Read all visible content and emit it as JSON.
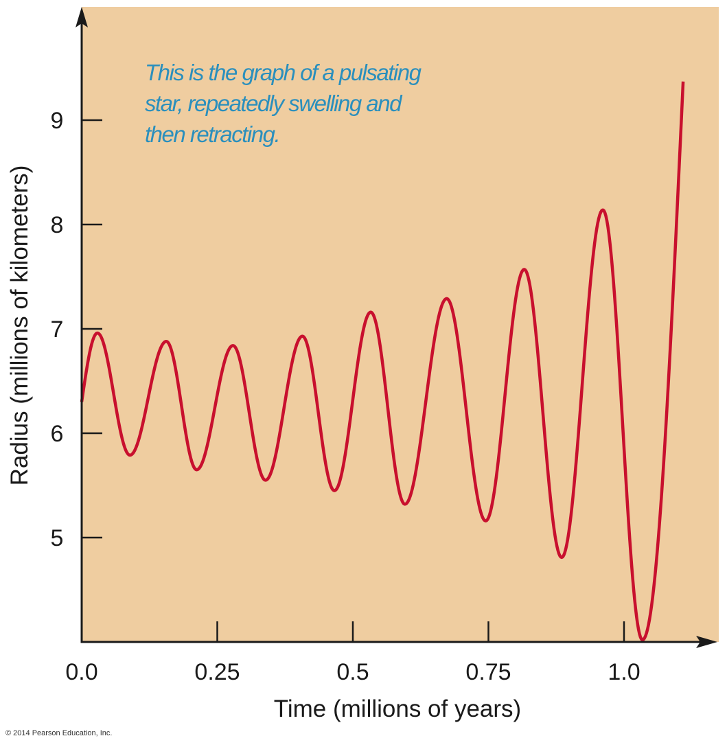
{
  "chart_data": {
    "type": "line",
    "title": "",
    "xlabel": "Time (millions of years)",
    "ylabel": "Radius (millions of kilometers)",
    "xlim": [
      0.0,
      1.17
    ],
    "ylim": [
      4.0,
      10.1
    ],
    "x_ticks": [
      0.0,
      0.25,
      0.5,
      0.75,
      1.0
    ],
    "x_tick_labels": [
      "0.0",
      "0.25",
      "0.5",
      "0.75",
      "1.0"
    ],
    "y_ticks": [
      5,
      6,
      7,
      8,
      9
    ],
    "y_tick_labels": [
      "5",
      "6",
      "7",
      "8",
      "9"
    ],
    "grid": false,
    "legend": null,
    "annotation": {
      "lines": [
        "This is the graph of a pulsating",
        "star, repeatedly swelling and",
        "then retracting."
      ],
      "position": "top-left"
    },
    "series": [
      {
        "name": "Radius",
        "color": "#c8102e",
        "description": "Key points (start, alternating peaks and troughs, end) of a smooth oscillating curve",
        "points": [
          {
            "x": 0.0,
            "y": 6.3
          },
          {
            "x": 0.029,
            "y": 6.96
          },
          {
            "x": 0.089,
            "y": 5.79
          },
          {
            "x": 0.156,
            "y": 6.88
          },
          {
            "x": 0.212,
            "y": 5.65
          },
          {
            "x": 0.279,
            "y": 6.84
          },
          {
            "x": 0.339,
            "y": 5.55
          },
          {
            "x": 0.407,
            "y": 6.93
          },
          {
            "x": 0.466,
            "y": 5.45
          },
          {
            "x": 0.533,
            "y": 7.16
          },
          {
            "x": 0.596,
            "y": 5.32
          },
          {
            "x": 0.673,
            "y": 7.29
          },
          {
            "x": 0.745,
            "y": 5.16
          },
          {
            "x": 0.816,
            "y": 7.57
          },
          {
            "x": 0.885,
            "y": 4.81
          },
          {
            "x": 0.961,
            "y": 8.14
          },
          {
            "x": 1.034,
            "y": 4.02
          },
          {
            "x": 1.109,
            "y": 9.37
          }
        ]
      }
    ],
    "background_color": "#efcda0",
    "axis_color": "#1a1a1a"
  },
  "footer": {
    "copyright": "© 2014 Pearson Education, Inc."
  }
}
